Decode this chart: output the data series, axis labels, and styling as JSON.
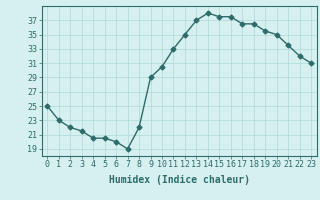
{
  "x": [
    0,
    1,
    2,
    3,
    4,
    5,
    6,
    7,
    8,
    9,
    10,
    11,
    12,
    13,
    14,
    15,
    16,
    17,
    18,
    19,
    20,
    21,
    22,
    23
  ],
  "y": [
    25,
    23,
    22,
    21.5,
    20.5,
    20.5,
    20,
    19,
    22,
    29,
    30.5,
    33,
    35,
    37,
    38,
    37.5,
    37.5,
    36.5,
    36.5,
    35.5,
    35,
    33.5,
    32,
    31
  ],
  "xlim": [
    -0.5,
    23.5
  ],
  "ylim": [
    18,
    39
  ],
  "yticks": [
    19,
    21,
    23,
    25,
    27,
    29,
    31,
    33,
    35,
    37
  ],
  "xticks": [
    0,
    1,
    2,
    3,
    4,
    5,
    6,
    7,
    8,
    9,
    10,
    11,
    12,
    13,
    14,
    15,
    16,
    17,
    18,
    19,
    20,
    21,
    22,
    23
  ],
  "xlabel": "Humidex (Indice chaleur)",
  "line_color": "#2e6b6b",
  "bg_color": "#d6f0f0",
  "grid_color": "#b0d8d8",
  "axis_color": "#2e6b6b",
  "marker": "D",
  "markersize": 2.5,
  "linewidth": 1.0,
  "xlabel_fontsize": 7,
  "tick_fontsize": 6
}
